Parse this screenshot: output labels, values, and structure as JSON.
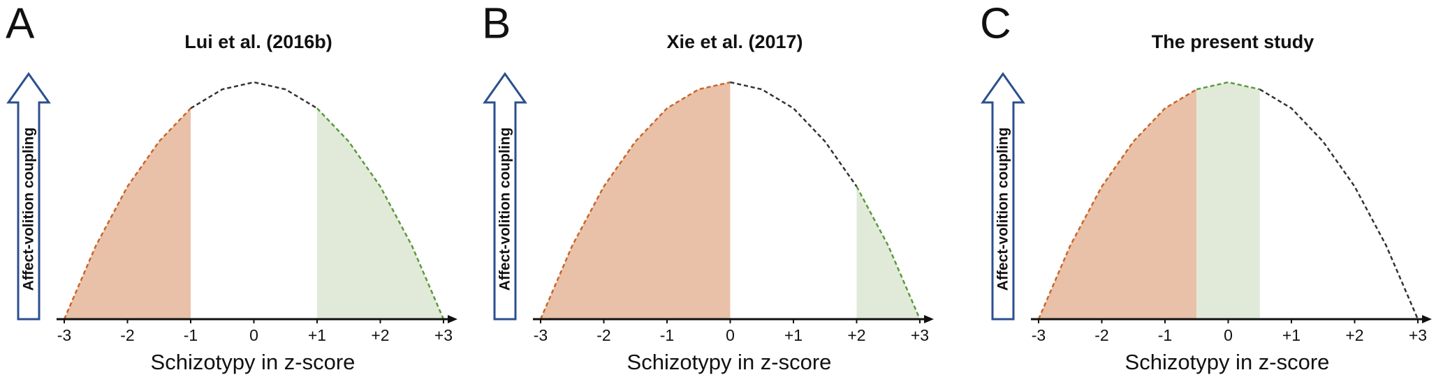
{
  "chart_data": [
    {
      "type": "line",
      "panel_label": "A",
      "title": "Lui et al. (2016b)",
      "ylabel": "Affect-volition coupling",
      "xlabel": "Schizotypy in z-score",
      "x": [
        -3,
        -2.5,
        -2,
        -1.5,
        -1,
        -0.5,
        0,
        0.5,
        1,
        1.5,
        2,
        2.5,
        3
      ],
      "values": [
        0,
        0.31,
        0.56,
        0.75,
        0.89,
        0.97,
        1,
        0.97,
        0.89,
        0.75,
        0.56,
        0.31,
        0
      ],
      "xlim": [
        -3,
        3
      ],
      "ylim": [
        0,
        1
      ],
      "xticks": [
        -3,
        -2,
        -1,
        0,
        {
          "value": 1,
          "label": "+1"
        },
        {
          "value": 2,
          "label": "+2"
        },
        {
          "value": 3,
          "label": "+3"
        }
      ],
      "line_color": "#333333",
      "regions": [
        {
          "from": -3,
          "to": -1,
          "fill": "#e9c1a8",
          "line_color": "#c8652a"
        },
        {
          "from": 1,
          "to": 3,
          "fill": "#e1ead9",
          "line_color": "#5a9a3a"
        }
      ]
    },
    {
      "type": "line",
      "panel_label": "B",
      "title": "Xie et al. (2017)",
      "ylabel": "Affect-volition coupling",
      "xlabel": "Schizotypy in z-score",
      "x": [
        -3,
        -2.5,
        -2,
        -1.5,
        -1,
        -0.5,
        0,
        0.5,
        1,
        1.5,
        2,
        2.5,
        3
      ],
      "values": [
        0,
        0.31,
        0.56,
        0.75,
        0.89,
        0.97,
        1,
        0.97,
        0.89,
        0.75,
        0.56,
        0.31,
        0
      ],
      "xlim": [
        -3,
        3
      ],
      "ylim": [
        0,
        1
      ],
      "xticks": [
        -3,
        -2,
        -1,
        0,
        {
          "value": 1,
          "label": "+1"
        },
        {
          "value": 2,
          "label": "+2"
        },
        {
          "value": 3,
          "label": "+3"
        }
      ],
      "line_color": "#333333",
      "regions": [
        {
          "from": -3,
          "to": 0,
          "fill": "#e9c1a8",
          "line_color": "#c8652a"
        },
        {
          "from": 2,
          "to": 3,
          "fill": "#e1ead9",
          "line_color": "#5a9a3a"
        }
      ]
    },
    {
      "type": "line",
      "panel_label": "C",
      "title": "The present study",
      "ylabel": "Affect-volition coupling",
      "xlabel": "Schizotypy in z-score",
      "x": [
        -3,
        -2.5,
        -2,
        -1.5,
        -1,
        -0.5,
        0,
        0.5,
        1,
        1.5,
        2,
        2.5,
        3
      ],
      "values": [
        0,
        0.31,
        0.56,
        0.75,
        0.89,
        0.97,
        1,
        0.97,
        0.89,
        0.75,
        0.56,
        0.31,
        0
      ],
      "xlim": [
        -3,
        3
      ],
      "ylim": [
        0,
        1
      ],
      "xticks": [
        -3,
        -2,
        -1,
        0,
        {
          "value": 1,
          "label": "+1"
        },
        {
          "value": 2,
          "label": "+2"
        },
        {
          "value": 3,
          "label": "+3"
        }
      ],
      "line_color": "#333333",
      "regions": [
        {
          "from": -3,
          "to": -0.5,
          "fill": "#e9c1a8",
          "line_color": "#c8652a"
        },
        {
          "from": -0.5,
          "to": 0.5,
          "fill": "#e1ead9",
          "line_color": "#5a9a3a"
        }
      ]
    }
  ]
}
